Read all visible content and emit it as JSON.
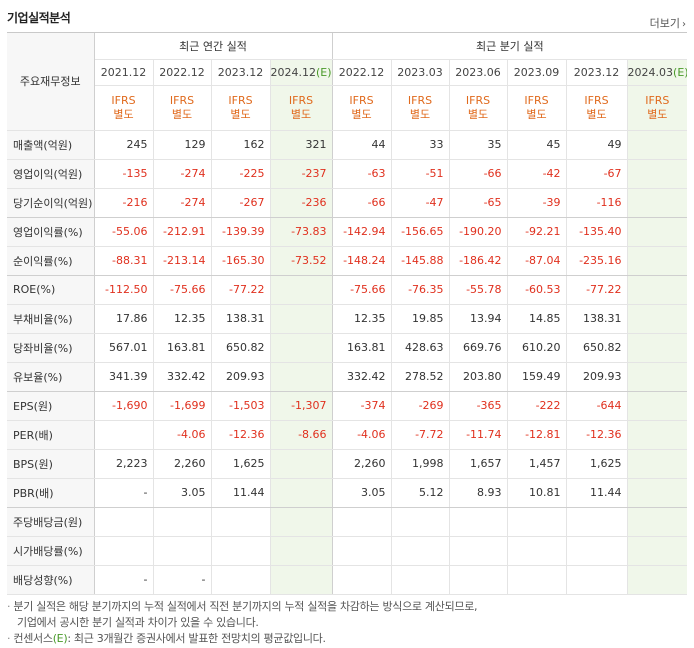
{
  "header": {
    "title": "기업실적분석",
    "more_label": "더보기"
  },
  "table": {
    "label_header": "주요재무정보",
    "annual_group": "최근 연간 실적",
    "quarter_group": "최근 분기 실적",
    "annual_periods": [
      "2021.12",
      "2022.12",
      "2023.12",
      "2024.12"
    ],
    "annual_estimate_suffix": "(E)",
    "quarter_periods": [
      "2022.12",
      "2023.03",
      "2023.06",
      "2023.09",
      "2023.12",
      "2024.03"
    ],
    "quarter_estimate_suffix": "(E)",
    "ifrs_line1": "IFRS",
    "ifrs_line2": "별도",
    "rows": [
      {
        "label": "매출액(억원)",
        "annual": [
          "245",
          "129",
          "162",
          "321"
        ],
        "quarter": [
          "44",
          "33",
          "35",
          "45",
          "49",
          ""
        ]
      },
      {
        "label": "영업이익(억원)",
        "annual": [
          "-135",
          "-274",
          "-225",
          "-237"
        ],
        "quarter": [
          "-63",
          "-51",
          "-66",
          "-42",
          "-67",
          ""
        ]
      },
      {
        "label": "당기순이익(억원)",
        "annual": [
          "-216",
          "-274",
          "-267",
          "-236"
        ],
        "quarter": [
          "-66",
          "-47",
          "-65",
          "-39",
          "-116",
          ""
        ]
      },
      {
        "label": "영업이익률(%)",
        "annual": [
          "-55.06",
          "-212.91",
          "-139.39",
          "-73.83"
        ],
        "quarter": [
          "-142.94",
          "-156.65",
          "-190.20",
          "-92.21",
          "-135.40",
          ""
        ]
      },
      {
        "label": "순이익률(%)",
        "annual": [
          "-88.31",
          "-213.14",
          "-165.30",
          "-73.52"
        ],
        "quarter": [
          "-148.24",
          "-145.88",
          "-186.42",
          "-87.04",
          "-235.16",
          ""
        ]
      },
      {
        "label": "ROE(%)",
        "annual": [
          "-112.50",
          "-75.66",
          "-77.22",
          ""
        ],
        "quarter": [
          "-75.66",
          "-76.35",
          "-55.78",
          "-60.53",
          "-77.22",
          ""
        ]
      },
      {
        "label": "부채비율(%)",
        "annual": [
          "17.86",
          "12.35",
          "138.31",
          ""
        ],
        "quarter": [
          "12.35",
          "19.85",
          "13.94",
          "14.85",
          "138.31",
          ""
        ]
      },
      {
        "label": "당좌비율(%)",
        "annual": [
          "567.01",
          "163.81",
          "650.82",
          ""
        ],
        "quarter": [
          "163.81",
          "428.63",
          "669.76",
          "610.20",
          "650.82",
          ""
        ]
      },
      {
        "label": "유보율(%)",
        "annual": [
          "341.39",
          "332.42",
          "209.93",
          ""
        ],
        "quarter": [
          "332.42",
          "278.52",
          "203.80",
          "159.49",
          "209.93",
          ""
        ]
      },
      {
        "label": "EPS(원)",
        "annual": [
          "-1,690",
          "-1,699",
          "-1,503",
          "-1,307"
        ],
        "quarter": [
          "-374",
          "-269",
          "-365",
          "-222",
          "-644",
          ""
        ]
      },
      {
        "label": "PER(배)",
        "annual": [
          "",
          "-4.06",
          "-12.36",
          "-8.66"
        ],
        "quarter": [
          "-4.06",
          "-7.72",
          "-11.74",
          "-12.81",
          "-12.36",
          ""
        ]
      },
      {
        "label": "BPS(원)",
        "annual": [
          "2,223",
          "2,260",
          "1,625",
          ""
        ],
        "quarter": [
          "2,260",
          "1,998",
          "1,657",
          "1,457",
          "1,625",
          ""
        ]
      },
      {
        "label": "PBR(배)",
        "annual": [
          "-",
          "3.05",
          "11.44",
          ""
        ],
        "quarter": [
          "3.05",
          "5.12",
          "8.93",
          "10.81",
          "11.44",
          ""
        ]
      },
      {
        "label": "주당배당금(원)",
        "annual": [
          "",
          "",
          "",
          ""
        ],
        "quarter": [
          "",
          "",
          "",
          "",
          "",
          ""
        ]
      },
      {
        "label": "시가배당률(%)",
        "annual": [
          "",
          "",
          "",
          ""
        ],
        "quarter": [
          "",
          "",
          "",
          "",
          "",
          ""
        ]
      },
      {
        "label": "배당성향(%)",
        "annual": [
          "-",
          "-",
          "",
          ""
        ],
        "quarter": [
          "",
          "",
          "",
          "",
          "",
          ""
        ]
      }
    ]
  },
  "notes": {
    "line1": "분기 실적은 해당 분기까지의 누적 실적에서 직전 분기까지의 누적 실적을 차감하는 방식으로 계산되므로,",
    "line2": "기업에서 공시한 분기 실적과 차이가 있을 수 있습니다.",
    "line3_prefix": "컨센서스",
    "line3_mark": "(E)",
    "line3_rest": ": 최근 3개월간 증권사에서 발표한 전망치의 평균값입니다."
  }
}
